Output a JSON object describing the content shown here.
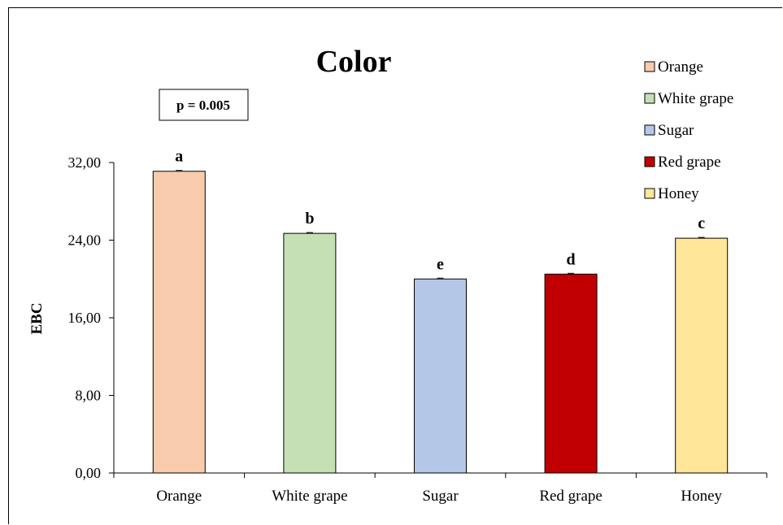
{
  "chart_data": {
    "type": "bar",
    "title": "Color",
    "annotation": "p = 0.005",
    "xlabel": "",
    "ylabel": "EBC",
    "categories": [
      "Orange",
      "White grape",
      "Sugar",
      "Red grape",
      "Honey"
    ],
    "values": [
      31.1,
      24.7,
      20.0,
      20.5,
      24.2
    ],
    "significance_letters": [
      "a",
      "b",
      "e",
      "d",
      "c"
    ],
    "colors": [
      "#F8CBAD",
      "#C5E0B4",
      "#B4C7E7",
      "#C00000",
      "#FFE699"
    ],
    "ylim": [
      0,
      32
    ],
    "yticks": [
      0,
      8,
      16,
      24,
      32
    ],
    "ytick_labels": [
      "0,00",
      "8,00",
      "16,00",
      "24,00",
      "32,00"
    ],
    "grid": false,
    "legend_position": "top-right",
    "legend": [
      "Orange",
      "White grape",
      "Sugar",
      "Red grape",
      "Honey"
    ]
  }
}
